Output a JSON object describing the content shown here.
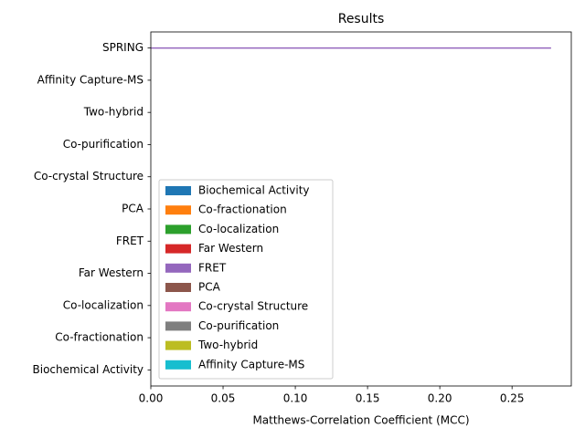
{
  "chart_data": {
    "type": "barh",
    "title": "Results",
    "xlabel": "Matthews-Correlation Coefficient (MCC)",
    "categories": [
      "Biochemical Activity",
      "Co-fractionation",
      "Co-localization",
      "Far Western",
      "FRET",
      "PCA",
      "Co-crystal Structure",
      "Co-purification",
      "Two-hybrid",
      "Affinity Capture-MS",
      "SPRING"
    ],
    "series": [
      {
        "name": "Biochemical Activity",
        "color": "#1f77b4",
        "values": [
          0,
          0,
          0,
          0,
          0,
          0,
          0,
          0,
          0,
          0,
          0
        ]
      },
      {
        "name": "Co-fractionation",
        "color": "#ff7f0e",
        "values": [
          0,
          0,
          0,
          0,
          0,
          0,
          0,
          0,
          0,
          0,
          0
        ]
      },
      {
        "name": "Co-localization",
        "color": "#2ca02c",
        "values": [
          0,
          0,
          0,
          0,
          0,
          0,
          0,
          0,
          0,
          0,
          0
        ]
      },
      {
        "name": "Far Western",
        "color": "#d62728",
        "values": [
          0,
          0,
          0,
          0,
          0,
          0,
          0,
          0,
          0,
          0,
          0
        ]
      },
      {
        "name": "FRET",
        "color": "#9467bd",
        "values": [
          0,
          0,
          0,
          0,
          0,
          0,
          0,
          0,
          0,
          0,
          0.277
        ]
      },
      {
        "name": "PCA",
        "color": "#8c564b",
        "values": [
          0,
          0,
          0,
          0,
          0,
          0,
          0,
          0,
          0,
          0,
          0
        ]
      },
      {
        "name": "Co-crystal Structure",
        "color": "#e377c2",
        "values": [
          0,
          0,
          0,
          0,
          0,
          0,
          0,
          0,
          0,
          0,
          0
        ]
      },
      {
        "name": "Co-purification",
        "color": "#7f7f7f",
        "values": [
          0,
          0,
          0,
          0,
          0,
          0,
          0,
          0,
          0,
          0,
          0
        ]
      },
      {
        "name": "Two-hybrid",
        "color": "#bcbd22",
        "values": [
          0,
          0,
          0,
          0,
          0,
          0,
          0,
          0,
          0,
          0,
          0
        ]
      },
      {
        "name": "Affinity Capture-MS",
        "color": "#17becf",
        "values": [
          0,
          0,
          0,
          0,
          0,
          0,
          0,
          0,
          0,
          0,
          0
        ]
      }
    ],
    "xlim": [
      0,
      0.291
    ],
    "xticks": [
      {
        "value": 0,
        "label": "0.00"
      },
      {
        "value": 0.05,
        "label": "0.05"
      },
      {
        "value": 0.1,
        "label": "0.10"
      },
      {
        "value": 0.15,
        "label": "0.15"
      },
      {
        "value": 0.2,
        "label": "0.20"
      },
      {
        "value": 0.25,
        "label": "0.25"
      }
    ],
    "legend": "lower left"
  }
}
